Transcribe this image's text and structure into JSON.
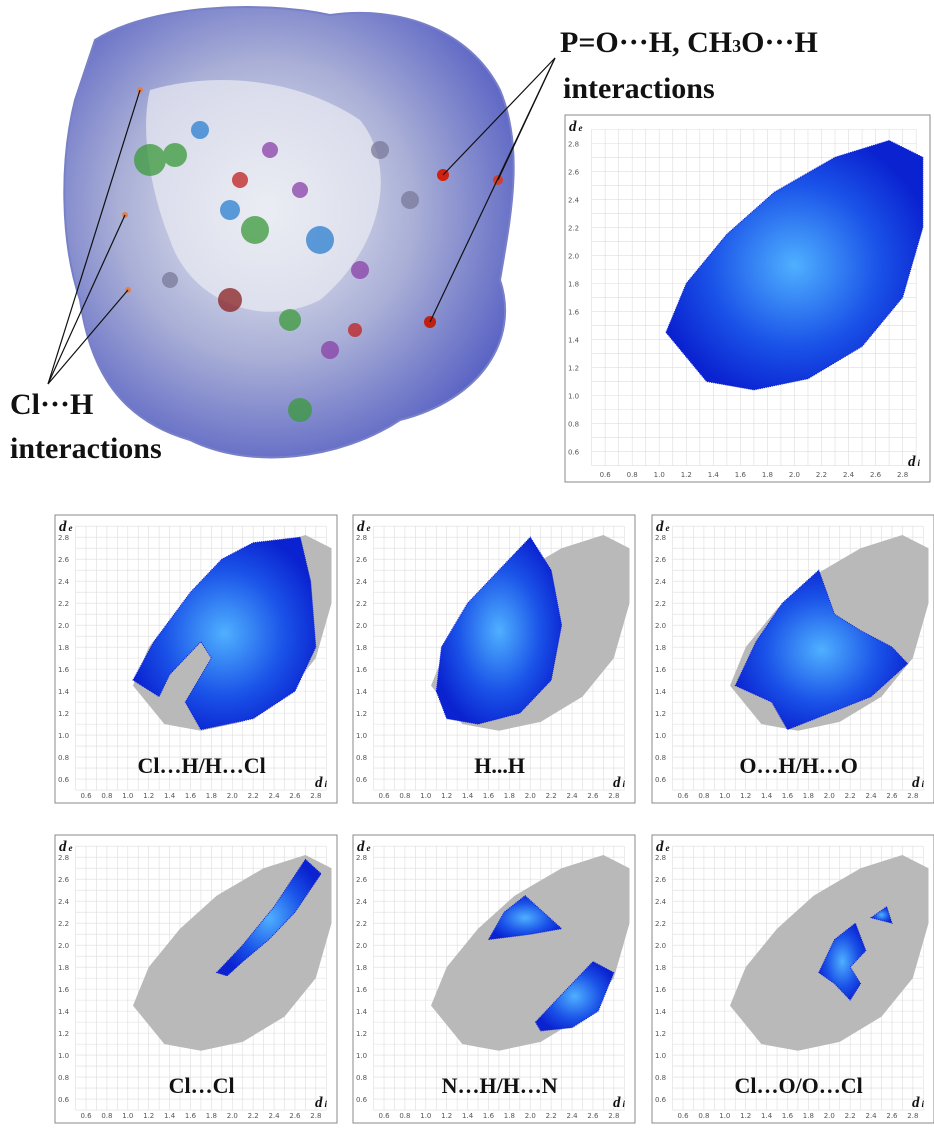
{
  "annotations": {
    "po_h": {
      "part1": "P=O···H,  CH",
      "sub": "3",
      "part2": "O···H",
      "line2": "interactions"
    },
    "cl_h": {
      "line1": "Cl···H",
      "line2": "interactions"
    }
  },
  "axes": {
    "ticks": [
      "0.6",
      "0.8",
      "1.0",
      "1.2",
      "1.4",
      "1.6",
      "1.8",
      "2.0",
      "2.2",
      "2.4",
      "2.6",
      "2.8"
    ],
    "y_label": {
      "symbol": "d",
      "subscript": "e"
    },
    "x_label": {
      "symbol": "d",
      "subscript": "i"
    }
  },
  "panels": [
    {
      "label": "Cl…H/H…Cl"
    },
    {
      "label": "H...H"
    },
    {
      "label": "O…H/H…O"
    },
    {
      "label": "Cl…Cl"
    },
    {
      "label": "N…H/H…N"
    },
    {
      "label": "Cl…O/O…Cl"
    }
  ]
}
